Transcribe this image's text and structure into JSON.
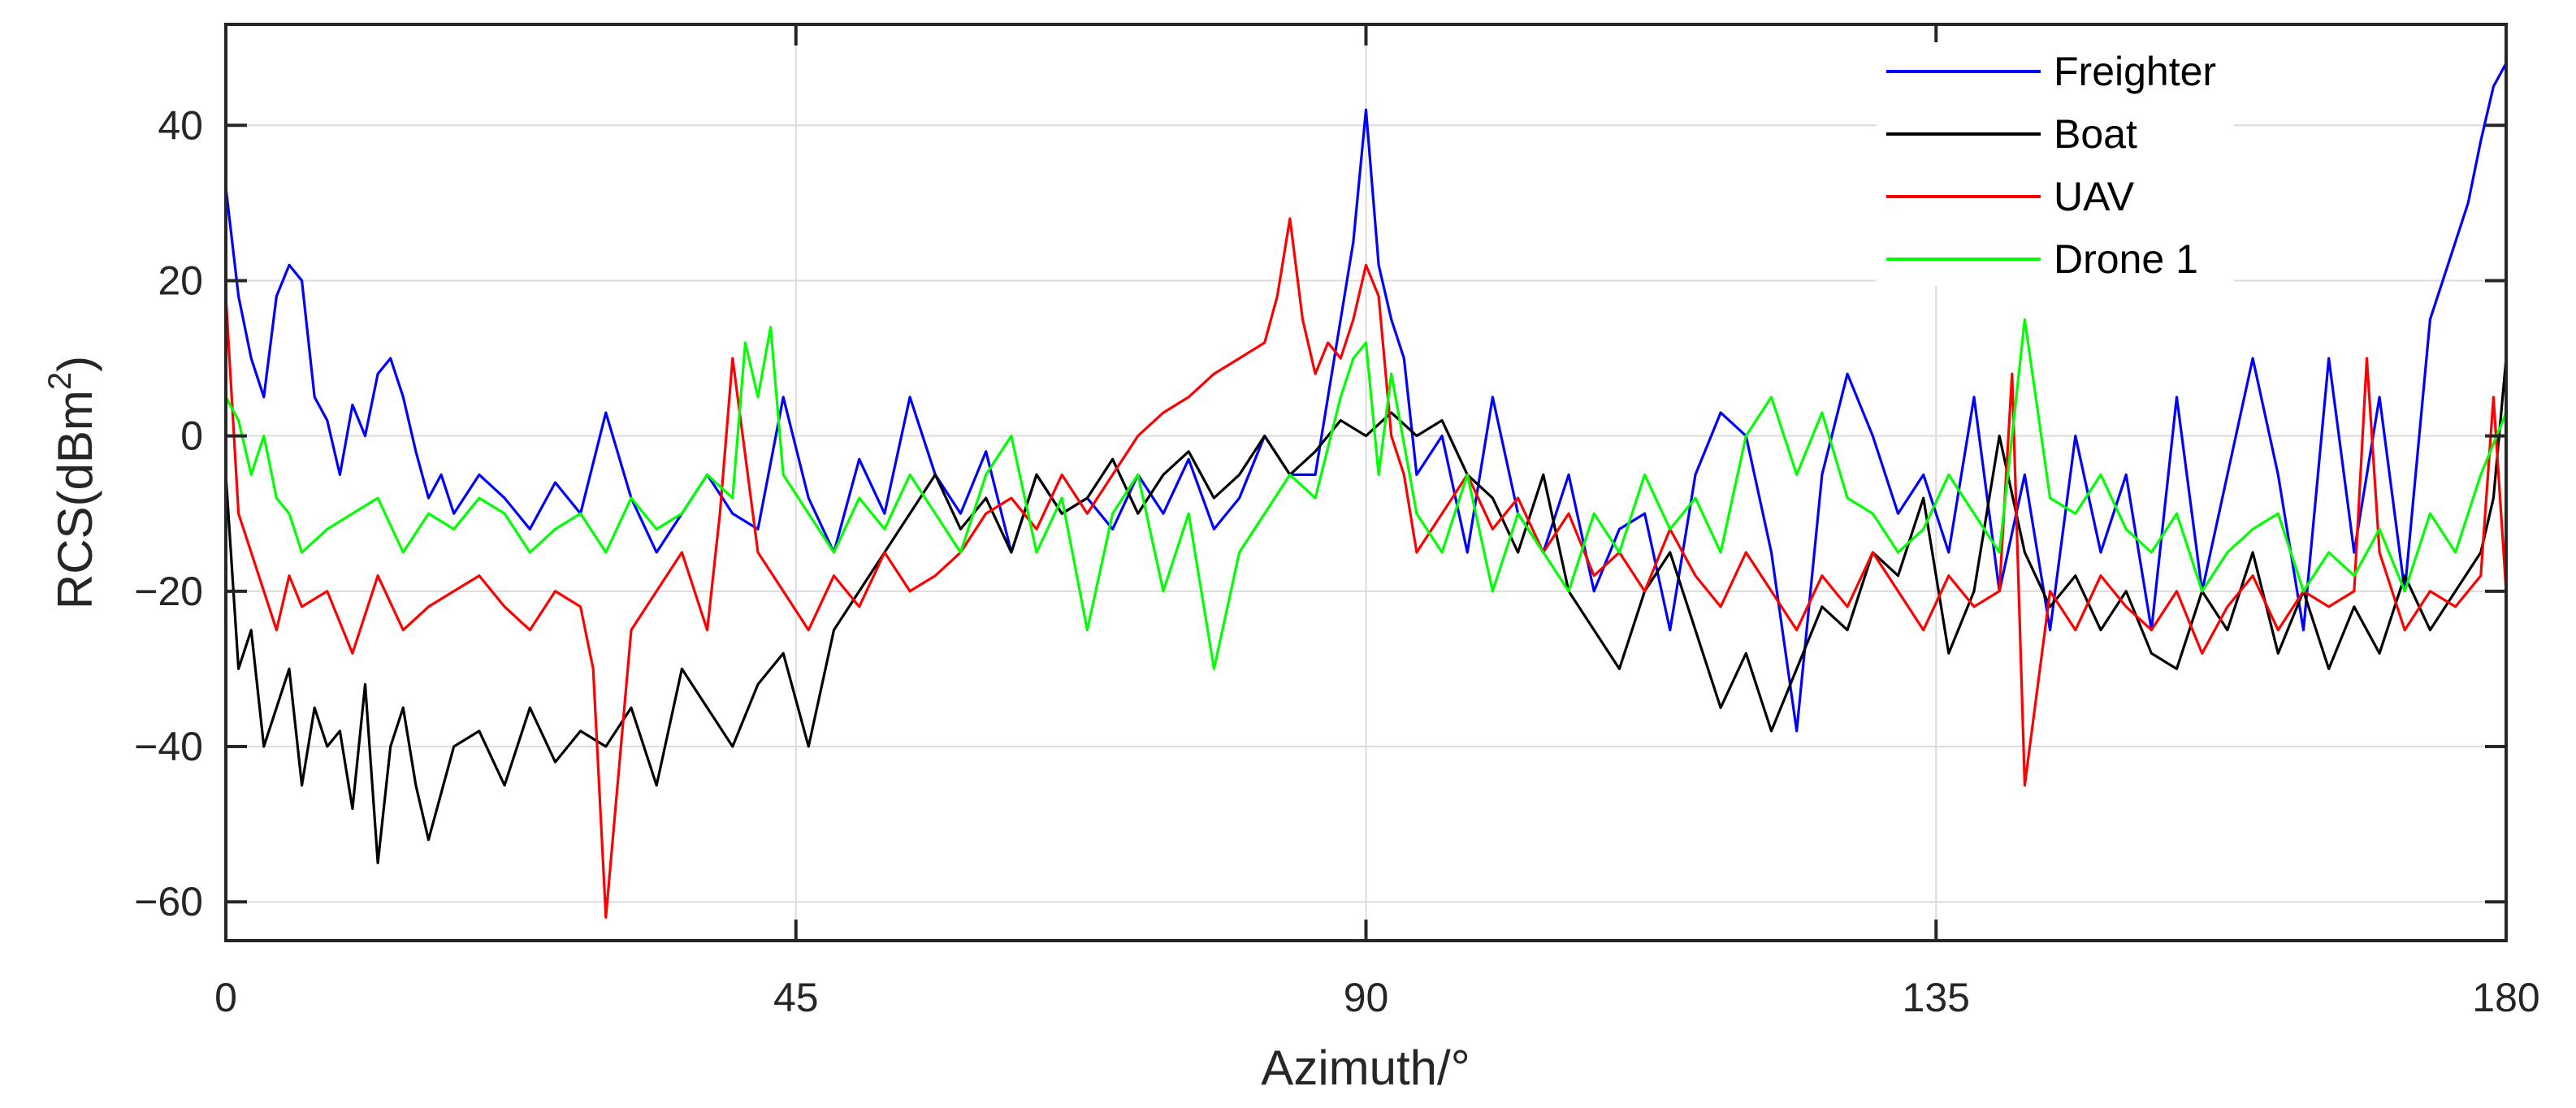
{
  "chart_data": {
    "type": "line",
    "xlabel": "Azimuth/°",
    "ylabel_base": "RCS(dBm",
    "ylabel_sup": "2",
    "ylabel_end": ")",
    "xlim": [
      0,
      180
    ],
    "ylim": [
      -65,
      53
    ],
    "xticks": [
      0,
      45,
      90,
      135,
      180
    ],
    "xtick_labels": [
      "0",
      "45",
      "90",
      "135",
      "180"
    ],
    "yticks": [
      -60,
      -40,
      -20,
      0,
      20,
      40
    ],
    "ytick_labels": [
      "−60",
      "−40",
      "−20",
      "0",
      "20",
      "40"
    ],
    "grid": true,
    "legend_position": "top-right",
    "series": [
      {
        "name": "Freighter",
        "color": "#0000ff",
        "x": [
          0,
          1,
          2,
          3,
          4,
          5,
          6,
          7,
          8,
          9,
          10,
          11,
          12,
          13,
          14,
          15,
          16,
          17,
          18,
          20,
          22,
          24,
          26,
          28,
          30,
          32,
          34,
          36,
          38,
          40,
          42,
          44,
          46,
          48,
          50,
          52,
          54,
          56,
          58,
          60,
          62,
          64,
          66,
          68,
          70,
          72,
          74,
          76,
          78,
          80,
          82,
          84,
          86,
          87,
          88,
          89,
          90,
          91,
          92,
          93,
          94,
          96,
          98,
          100,
          102,
          104,
          106,
          108,
          110,
          112,
          114,
          116,
          118,
          120,
          122,
          124,
          126,
          128,
          130,
          132,
          134,
          136,
          138,
          140,
          142,
          144,
          146,
          148,
          150,
          152,
          154,
          156,
          158,
          160,
          162,
          164,
          166,
          168,
          170,
          172,
          174,
          175,
          176,
          177,
          178,
          179,
          180
        ],
        "values": [
          32,
          18,
          10,
          5,
          18,
          22,
          20,
          5,
          2,
          -5,
          4,
          0,
          8,
          10,
          5,
          -2,
          -8,
          -5,
          -10,
          -5,
          -8,
          -12,
          -6,
          -10,
          3,
          -8,
          -15,
          -10,
          -5,
          -10,
          -12,
          5,
          -8,
          -15,
          -3,
          -10,
          5,
          -5,
          -10,
          -2,
          -15,
          -5,
          -10,
          -8,
          -12,
          -5,
          -10,
          -3,
          -12,
          -8,
          0,
          -5,
          -5,
          5,
          15,
          25,
          42,
          22,
          15,
          10,
          -5,
          0,
          -15,
          5,
          -10,
          -15,
          -5,
          -20,
          -12,
          -10,
          -25,
          -5,
          3,
          0,
          -15,
          -38,
          -5,
          8,
          0,
          -10,
          -5,
          -15,
          5,
          -20,
          -5,
          -25,
          0,
          -15,
          -5,
          -25,
          5,
          -20,
          -5,
          10,
          -5,
          -25,
          10,
          -15,
          5,
          -20,
          15,
          20,
          25,
          30,
          38,
          45,
          48
        ]
      },
      {
        "name": "Boat",
        "color": "#000000",
        "x": [
          0,
          1,
          2,
          3,
          4,
          5,
          6,
          7,
          8,
          9,
          10,
          11,
          12,
          13,
          14,
          15,
          16,
          18,
          20,
          22,
          24,
          26,
          28,
          30,
          32,
          34,
          36,
          38,
          40,
          42,
          44,
          46,
          48,
          50,
          52,
          54,
          56,
          58,
          60,
          62,
          64,
          66,
          68,
          70,
          72,
          74,
          76,
          78,
          80,
          82,
          84,
          86,
          88,
          90,
          92,
          94,
          96,
          98,
          100,
          102,
          104,
          106,
          108,
          110,
          112,
          114,
          116,
          118,
          120,
          122,
          124,
          126,
          128,
          130,
          132,
          134,
          136,
          138,
          140,
          142,
          144,
          146,
          148,
          150,
          152,
          154,
          156,
          158,
          160,
          162,
          164,
          166,
          168,
          170,
          172,
          174,
          176,
          178,
          179,
          180
        ],
        "values": [
          -5,
          -30,
          -25,
          -40,
          -35,
          -30,
          -45,
          -35,
          -40,
          -38,
          -48,
          -32,
          -55,
          -40,
          -35,
          -45,
          -52,
          -40,
          -38,
          -45,
          -35,
          -42,
          -38,
          -40,
          -35,
          -45,
          -30,
          -35,
          -40,
          -32,
          -28,
          -40,
          -25,
          -20,
          -15,
          -10,
          -5,
          -12,
          -8,
          -15,
          -5,
          -10,
          -8,
          -3,
          -10,
          -5,
          -2,
          -8,
          -5,
          0,
          -5,
          -2,
          2,
          0,
          3,
          0,
          2,
          -5,
          -8,
          -15,
          -5,
          -20,
          -25,
          -30,
          -20,
          -15,
          -25,
          -35,
          -28,
          -38,
          -30,
          -22,
          -25,
          -15,
          -18,
          -8,
          -28,
          -20,
          0,
          -15,
          -22,
          -18,
          -25,
          -20,
          -28,
          -30,
          -20,
          -25,
          -15,
          -28,
          -20,
          -30,
          -22,
          -28,
          -18,
          -25,
          -20,
          -15,
          -8,
          10
        ]
      },
      {
        "name": "UAV",
        "color": "#ff0000",
        "x": [
          0,
          1,
          2,
          3,
          4,
          5,
          6,
          8,
          10,
          12,
          14,
          16,
          18,
          20,
          22,
          24,
          26,
          28,
          29,
          30,
          32,
          34,
          36,
          38,
          39,
          40,
          42,
          44,
          46,
          48,
          50,
          52,
          54,
          56,
          58,
          60,
          62,
          64,
          66,
          68,
          70,
          72,
          74,
          76,
          78,
          80,
          82,
          83,
          84,
          85,
          86,
          87,
          88,
          89,
          90,
          91,
          92,
          93,
          94,
          96,
          98,
          100,
          102,
          104,
          106,
          108,
          110,
          112,
          114,
          116,
          118,
          120,
          122,
          124,
          126,
          128,
          130,
          132,
          134,
          136,
          138,
          140,
          141,
          142,
          144,
          146,
          148,
          150,
          152,
          154,
          156,
          158,
          160,
          162,
          164,
          166,
          168,
          169,
          170,
          172,
          174,
          176,
          178,
          179,
          180
        ],
        "values": [
          18,
          -10,
          -15,
          -20,
          -25,
          -18,
          -22,
          -20,
          -28,
          -18,
          -25,
          -22,
          -20,
          -18,
          -22,
          -25,
          -20,
          -22,
          -30,
          -62,
          -25,
          -20,
          -15,
          -25,
          -10,
          10,
          -15,
          -20,
          -25,
          -18,
          -22,
          -15,
          -20,
          -18,
          -15,
          -10,
          -8,
          -12,
          -5,
          -10,
          -5,
          0,
          3,
          5,
          8,
          10,
          12,
          18,
          28,
          15,
          8,
          12,
          10,
          15,
          22,
          18,
          0,
          -5,
          -15,
          -10,
          -5,
          -12,
          -8,
          -15,
          -10,
          -18,
          -15,
          -20,
          -12,
          -18,
          -22,
          -15,
          -20,
          -25,
          -18,
          -22,
          -15,
          -20,
          -25,
          -18,
          -22,
          -20,
          8,
          -45,
          -20,
          -25,
          -18,
          -22,
          -25,
          -20,
          -28,
          -22,
          -18,
          -25,
          -20,
          -22,
          -20,
          10,
          -15,
          -25,
          -20,
          -22,
          -18,
          5,
          -20
        ]
      },
      {
        "name": "Drone 1",
        "color": "#00ff00",
        "x": [
          0,
          1,
          2,
          3,
          4,
          5,
          6,
          8,
          10,
          12,
          14,
          16,
          18,
          20,
          22,
          24,
          26,
          28,
          30,
          32,
          34,
          36,
          38,
          40,
          41,
          42,
          43,
          44,
          46,
          48,
          50,
          52,
          54,
          56,
          58,
          60,
          62,
          64,
          66,
          68,
          70,
          72,
          74,
          76,
          78,
          80,
          82,
          84,
          86,
          88,
          89,
          90,
          91,
          92,
          94,
          96,
          98,
          100,
          102,
          104,
          106,
          108,
          110,
          112,
          114,
          116,
          118,
          120,
          122,
          124,
          126,
          128,
          130,
          132,
          134,
          136,
          138,
          140,
          142,
          144,
          146,
          148,
          150,
          152,
          154,
          156,
          158,
          160,
          162,
          164,
          166,
          168,
          170,
          172,
          174,
          176,
          178,
          180
        ],
        "values": [
          5,
          2,
          -5,
          0,
          -8,
          -10,
          -15,
          -12,
          -10,
          -8,
          -15,
          -10,
          -12,
          -8,
          -10,
          -15,
          -12,
          -10,
          -15,
          -8,
          -12,
          -10,
          -5,
          -8,
          12,
          5,
          14,
          -5,
          -10,
          -15,
          -8,
          -12,
          -5,
          -10,
          -15,
          -5,
          0,
          -15,
          -8,
          -25,
          -10,
          -5,
          -20,
          -10,
          -30,
          -15,
          -10,
          -5,
          -8,
          5,
          10,
          12,
          -5,
          8,
          -10,
          -15,
          -5,
          -20,
          -10,
          -15,
          -20,
          -10,
          -15,
          -5,
          -12,
          -8,
          -15,
          0,
          5,
          -5,
          3,
          -8,
          -10,
          -15,
          -12,
          -5,
          -10,
          -15,
          15,
          -8,
          -10,
          -5,
          -12,
          -15,
          -10,
          -20,
          -15,
          -12,
          -10,
          -20,
          -15,
          -18,
          -12,
          -20,
          -10,
          -15,
          -5,
          3
        ]
      }
    ]
  }
}
